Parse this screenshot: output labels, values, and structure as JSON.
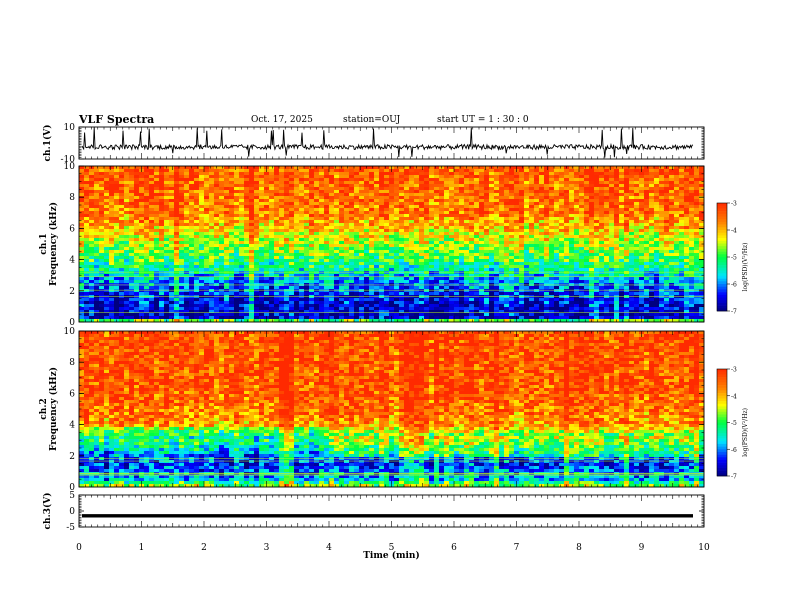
{
  "header": {
    "title": "VLF Spectra",
    "date": "Oct. 17, 2025",
    "station": "station=OUJ",
    "start": "start  UT =   1 : 30 : 0"
  },
  "colors": {
    "deep_blue": "#000080",
    "blue": "#0000ff",
    "cyan": "#00e5ff",
    "green": "#00ff40",
    "yellow": "#ffff00",
    "orange": "#ff8000",
    "red": "#ff2a00",
    "white": "#ffffff",
    "black": "#000000"
  },
  "chart_data": [
    {
      "type": "line",
      "panel": "ch1-waveform",
      "ylabel": "ch.1(V)",
      "yticks": [
        "10",
        "-10"
      ],
      "ylim": [
        -10,
        10
      ],
      "xlim": [
        0,
        10
      ],
      "description_series": {
        "name": "ch.1",
        "baseline": -2.5,
        "noise_amplitude": 1.5,
        "spikes_up_to": 10
      }
    },
    {
      "type": "heatmap",
      "panel": "ch1-spectrogram",
      "ylabel": "ch.1\nFrequency (kHz)",
      "ylabel_lines": [
        "ch.1",
        "Frequency (kHz)"
      ],
      "yticks": [
        "0",
        "2",
        "4",
        "6",
        "8",
        "10"
      ],
      "ylim": [
        0,
        10
      ],
      "xlim": [
        0,
        10
      ],
      "colorbar": {
        "label": "log(PSD)(V²/Hz)",
        "ticks": [
          "-3",
          "-4",
          "-5",
          "-6",
          "-7"
        ],
        "range": [
          -7,
          -3
        ]
      },
      "band_profile_khz_to_logpsd": [
        [
          0,
          -4.0
        ],
        [
          0.3,
          -6.7
        ],
        [
          1.5,
          -6.5
        ],
        [
          2.5,
          -6.0
        ],
        [
          3.5,
          -5.3
        ],
        [
          4.5,
          -4.8
        ],
        [
          5.5,
          -4.3
        ],
        [
          7,
          -3.6
        ],
        [
          10,
          -3.4
        ]
      ]
    },
    {
      "type": "heatmap",
      "panel": "ch2-spectrogram",
      "ylabel": "ch.2\nFrequency (kHz)",
      "ylabel_lines": [
        "ch.2",
        "Frequency (kHz)"
      ],
      "yticks": [
        "0",
        "2",
        "4",
        "6",
        "8",
        "10"
      ],
      "ylim": [
        0,
        10
      ],
      "xlim": [
        0,
        10
      ],
      "colorbar": {
        "label": "log(PSD)(V²/Hz)",
        "ticks": [
          "-3",
          "-4",
          "-5",
          "-6",
          "-7"
        ],
        "range": [
          -7,
          -3
        ]
      },
      "band_profile_khz_to_logpsd": [
        [
          0,
          -4.5
        ],
        [
          0.5,
          -5.8
        ],
        [
          1.5,
          -6.4
        ],
        [
          2.5,
          -5.6
        ],
        [
          3.2,
          -5.0
        ],
        [
          4.0,
          -3.8
        ],
        [
          6,
          -3.4
        ],
        [
          10,
          -3.3
        ]
      ]
    },
    {
      "type": "line",
      "panel": "ch3-waveform",
      "ylabel": "ch.3(V)",
      "yticks": [
        "5",
        "0",
        "-5"
      ],
      "ylim": [
        -5,
        5
      ],
      "xlim": [
        0,
        10
      ],
      "description_series": {
        "name": "ch.3",
        "baseline": -1.5
      }
    }
  ],
  "xaxis": {
    "label": "Time (min)",
    "ticks": [
      "0",
      "1",
      "2",
      "3",
      "4",
      "5",
      "6",
      "7",
      "8",
      "9",
      "10"
    ],
    "xlim": [
      0,
      10
    ]
  }
}
